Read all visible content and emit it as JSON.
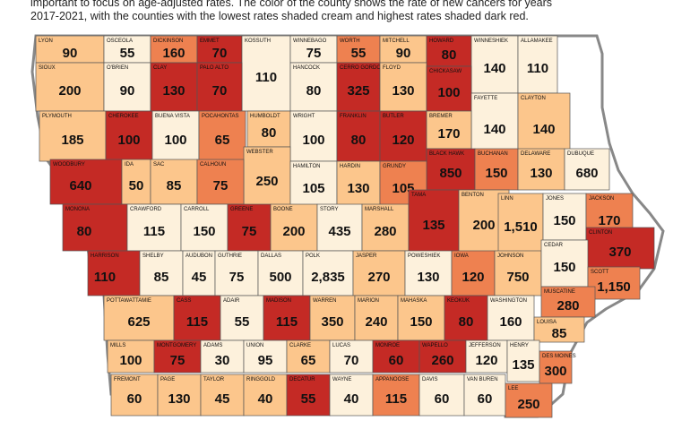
{
  "caption": {
    "line1": "important to focus on age-adjusted rates. The color of the county shows the rate of new cancers for years",
    "line2": "2017-2021, with the counties with the lowest rates shaded cream and highest rates shaded dark red."
  },
  "colors": {
    "cream": "#fdf1dc",
    "light_orange": "#fcc68c",
    "orange": "#ee8150",
    "dark_red": "#c42a25",
    "border": "#555555",
    "outline": "#888888"
  },
  "counties": [
    {
      "name": "LYON",
      "value": "90",
      "color": "light_orange"
    },
    {
      "name": "OSCEOLA",
      "value": "55",
      "color": "cream"
    },
    {
      "name": "DICKINSON",
      "value": "160",
      "color": "orange"
    },
    {
      "name": "EMMET",
      "value": "70",
      "color": "dark_red"
    },
    {
      "name": "KOSSUTH",
      "value": "110",
      "color": "cream"
    },
    {
      "name": "WINNEBAGO",
      "value": "75",
      "color": "cream"
    },
    {
      "name": "WORTH",
      "value": "55",
      "color": "orange"
    },
    {
      "name": "MITCHELL",
      "value": "90",
      "color": "light_orange"
    },
    {
      "name": "HOWARD",
      "value": "80",
      "color": "dark_red"
    },
    {
      "name": "WINNESHIEK",
      "value": "140",
      "color": "cream"
    },
    {
      "name": "ALLAMAKEE",
      "value": "110",
      "color": "cream"
    },
    {
      "name": "SIOUX",
      "value": "200",
      "color": "light_orange"
    },
    {
      "name": "O'BRIEN",
      "value": "90",
      "color": "cream"
    },
    {
      "name": "CLAY",
      "value": "130",
      "color": "dark_red"
    },
    {
      "name": "PALO ALTO",
      "value": "70",
      "color": "dark_red"
    },
    {
      "name": "HANCOCK",
      "value": "80",
      "color": "cream"
    },
    {
      "name": "CERRO GORDO",
      "value": "325",
      "color": "dark_red"
    },
    {
      "name": "FLOYD",
      "value": "130",
      "color": "light_orange"
    },
    {
      "name": "CHICKASAW",
      "value": "100",
      "color": "dark_red"
    },
    {
      "name": "FAYETTE",
      "value": "140",
      "color": "cream"
    },
    {
      "name": "CLAYTON",
      "value": "140",
      "color": "light_orange"
    },
    {
      "name": "PLYMOUTH",
      "value": "185",
      "color": "light_orange"
    },
    {
      "name": "CHEROKEE",
      "value": "100",
      "color": "dark_red"
    },
    {
      "name": "BUENA VISTA",
      "value": "100",
      "color": "cream"
    },
    {
      "name": "POCAHONTAS",
      "value": "65",
      "color": "orange"
    },
    {
      "name": "HUMBOLDT",
      "value": "80",
      "color": "light_orange"
    },
    {
      "name": "WRIGHT",
      "value": "100",
      "color": "cream"
    },
    {
      "name": "FRANKLIN",
      "value": "80",
      "color": "dark_red"
    },
    {
      "name": "BUTLER",
      "value": "120",
      "color": "dark_red"
    },
    {
      "name": "BREMER",
      "value": "170",
      "color": "light_orange"
    },
    {
      "name": "WEBSTER",
      "value": "250",
      "color": "light_orange"
    },
    {
      "name": "BLACK HAWK",
      "value": "850",
      "color": "dark_red"
    },
    {
      "name": "BUCHANAN",
      "value": "150",
      "color": "orange"
    },
    {
      "name": "DELAWARE",
      "value": "130",
      "color": "light_orange"
    },
    {
      "name": "DUBUQUE",
      "value": "680",
      "color": "cream"
    },
    {
      "name": "WOODBURY",
      "value": "640",
      "color": "dark_red"
    },
    {
      "name": "IDA",
      "value": "50",
      "color": "light_orange"
    },
    {
      "name": "SAC",
      "value": "85",
      "color": "light_orange"
    },
    {
      "name": "CALHOUN",
      "value": "75",
      "color": "orange"
    },
    {
      "name": "HAMILTON",
      "value": "105",
      "color": "cream"
    },
    {
      "name": "HARDIN",
      "value": "130",
      "color": "light_orange"
    },
    {
      "name": "GRUNDY",
      "value": "105",
      "color": "orange"
    },
    {
      "name": "MONONA",
      "value": "80",
      "color": "dark_red"
    },
    {
      "name": "CRAWFORD",
      "value": "115",
      "color": "cream"
    },
    {
      "name": "CARROLL",
      "value": "150",
      "color": "cream"
    },
    {
      "name": "GREENE",
      "value": "75",
      "color": "dark_red"
    },
    {
      "name": "BOONE",
      "value": "200",
      "color": "light_orange"
    },
    {
      "name": "STORY",
      "value": "435",
      "color": "cream"
    },
    {
      "name": "MARSHALL",
      "value": "280",
      "color": "light_orange"
    },
    {
      "name": "TAMA",
      "value": "135",
      "color": "dark_red"
    },
    {
      "name": "BENTON",
      "value": "200",
      "color": "light_orange"
    },
    {
      "name": "LINN",
      "value": "1,510",
      "color": "light_orange"
    },
    {
      "name": "JONES",
      "value": "150",
      "color": "cream"
    },
    {
      "name": "JACKSON",
      "value": "170",
      "color": "orange"
    },
    {
      "name": "CLINTON",
      "value": "370",
      "color": "dark_red"
    },
    {
      "name": "HARRISON",
      "value": "110",
      "color": "dark_red"
    },
    {
      "name": "SHELBY",
      "value": "85",
      "color": "cream"
    },
    {
      "name": "AUDUBON",
      "value": "45",
      "color": "cream"
    },
    {
      "name": "GUTHRIE",
      "value": "75",
      "color": "cream"
    },
    {
      "name": "DALLAS",
      "value": "500",
      "color": "cream"
    },
    {
      "name": "POLK",
      "value": "2,835",
      "color": "cream"
    },
    {
      "name": "JASPER",
      "value": "270",
      "color": "light_orange"
    },
    {
      "name": "POWESHIEK",
      "value": "130",
      "color": "cream"
    },
    {
      "name": "IOWA",
      "value": "120",
      "color": "orange"
    },
    {
      "name": "JOHNSON",
      "value": "750",
      "color": "light_orange"
    },
    {
      "name": "CEDAR",
      "value": "150",
      "color": "cream"
    },
    {
      "name": "SCOTT",
      "value": "1,150",
      "color": "orange"
    },
    {
      "name": "POTTAWATTAMIE",
      "value": "625",
      "color": "light_orange"
    },
    {
      "name": "CASS",
      "value": "115",
      "color": "dark_red"
    },
    {
      "name": "ADAIR",
      "value": "55",
      "color": "cream"
    },
    {
      "name": "MADISON",
      "value": "115",
      "color": "dark_red"
    },
    {
      "name": "WARREN",
      "value": "350",
      "color": "light_orange"
    },
    {
      "name": "MARION",
      "value": "240",
      "color": "light_orange"
    },
    {
      "name": "MAHASKA",
      "value": "150",
      "color": "light_orange"
    },
    {
      "name": "KEOKUK",
      "value": "80",
      "color": "dark_red"
    },
    {
      "name": "WASHINGTON",
      "value": "160",
      "color": "cream"
    },
    {
      "name": "MUSCATINE",
      "value": "280",
      "color": "orange"
    },
    {
      "name": "LOUISA",
      "value": "85",
      "color": "light_orange"
    },
    {
      "name": "MILLS",
      "value": "100",
      "color": "light_orange"
    },
    {
      "name": "MONTGOMERY",
      "value": "75",
      "color": "dark_red"
    },
    {
      "name": "ADAMS",
      "value": "30",
      "color": "cream"
    },
    {
      "name": "UNION",
      "value": "95",
      "color": "cream"
    },
    {
      "name": "CLARKE",
      "value": "65",
      "color": "light_orange"
    },
    {
      "name": "LUCAS",
      "value": "70",
      "color": "cream"
    },
    {
      "name": "MONROE",
      "value": "60",
      "color": "dark_red"
    },
    {
      "name": "WAPELLO",
      "value": "260",
      "color": "dark_red"
    },
    {
      "name": "JEFFERSON",
      "value": "120",
      "color": "cream"
    },
    {
      "name": "HENRY",
      "value": "135",
      "color": "cream"
    },
    {
      "name": "DES MOINES",
      "value": "300",
      "color": "orange"
    },
    {
      "name": "FREMONT",
      "value": "60",
      "color": "light_orange"
    },
    {
      "name": "PAGE",
      "value": "130",
      "color": "light_orange"
    },
    {
      "name": "TAYLOR",
      "value": "45",
      "color": "light_orange"
    },
    {
      "name": "RINGGOLD",
      "value": "40",
      "color": "light_orange"
    },
    {
      "name": "DECATUR",
      "value": "55",
      "color": "dark_red"
    },
    {
      "name": "WAYNE",
      "value": "40",
      "color": "cream"
    },
    {
      "name": "APPANOOSE",
      "value": "115",
      "color": "orange"
    },
    {
      "name": "DAVIS",
      "value": "60",
      "color": "cream"
    },
    {
      "name": "VAN BUREN",
      "value": "60",
      "color": "cream"
    },
    {
      "name": "LEE",
      "value": "250",
      "color": "orange"
    }
  ]
}
